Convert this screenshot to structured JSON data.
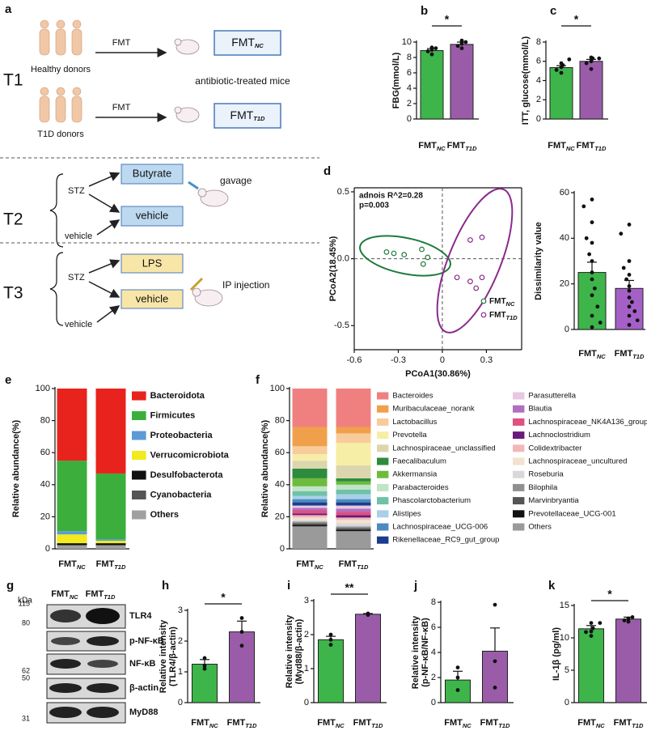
{
  "panel_a": {
    "letter": "a",
    "rows": [
      "T1",
      "T2",
      "T3"
    ],
    "t1": {
      "donors": [
        "Healthy donors",
        "T1D donors"
      ],
      "arrow": "FMT",
      "groups": [
        {
          "text": "FMT",
          "sub": "NC"
        },
        {
          "text": "FMT",
          "sub": "T1D"
        }
      ],
      "mice": "antibiotic-treated mice"
    },
    "t2": {
      "inputs": [
        "STZ",
        "vehicle"
      ],
      "boxes": [
        "Butyrate",
        "vehicle"
      ],
      "route": "gavage"
    },
    "t3": {
      "inputs": [
        "STZ",
        "vehicle"
      ],
      "boxes": [
        "LPS",
        "vehicle"
      ],
      "route": "IP injection"
    }
  },
  "panel_g": {
    "letter": "g",
    "unit": "kDa",
    "markers": [
      115,
      80,
      62,
      50,
      31
    ],
    "lanes": [
      {
        "text": "FMT",
        "sub": "NC"
      },
      {
        "text": "FMT",
        "sub": "T1D"
      }
    ],
    "proteins": [
      "TLR4",
      "p-NF-κB",
      "NF-κB",
      "β-actin",
      "MyD88"
    ]
  },
  "chart_data": [
    {
      "type": "bar",
      "letter": "b",
      "ylabel": "FBG(mmol/L)",
      "categories": [
        "FMT",
        "FMT"
      ],
      "category_subscripts": [
        "NC",
        "T1D"
      ],
      "colors": [
        "#3db54a",
        "#9a5ca8"
      ],
      "values": [
        8.9,
        9.7
      ],
      "errors": [
        0.25,
        0.3
      ],
      "points": [
        [
          8.4,
          8.8,
          9.0,
          9.2,
          9.3
        ],
        [
          9.2,
          9.5,
          9.8,
          10.0,
          10.2
        ]
      ],
      "ylim": [
        0,
        10
      ],
      "yticks": [
        0,
        2,
        4,
        6,
        8,
        10
      ],
      "significance": "*"
    },
    {
      "type": "bar",
      "letter": "c",
      "ylabel": "ITT, glucose(mmol/L)",
      "categories": [
        "FMT",
        "FMT"
      ],
      "category_subscripts": [
        "NC",
        "T1D"
      ],
      "colors": [
        "#3db54a",
        "#9a5ca8"
      ],
      "values": [
        5.35,
        6.0
      ],
      "errors": [
        0.2,
        0.2
      ],
      "points": [
        [
          4.8,
          5.1,
          5.4,
          5.6,
          5.8,
          6.2
        ],
        [
          5.2,
          5.8,
          6.0,
          6.3,
          6.4,
          6.3
        ]
      ],
      "ylim": [
        0,
        8
      ],
      "yticks": [
        0,
        2,
        4,
        6,
        8
      ],
      "significance": "*"
    },
    {
      "type": "scatter",
      "letter": "d",
      "xlabel": "PCoA1(30.86%)",
      "ylabel": "PCoA2(18.45%)",
      "annotations": [
        "adnois R^2=0.28",
        "p=0.003"
      ],
      "series": [
        {
          "name": "FMT",
          "name_sub": "NC",
          "color": "#1e7a3c",
          "x": [
            -0.38,
            -0.33,
            -0.26,
            -0.14,
            -0.13,
            -0.1
          ],
          "y": [
            0.05,
            0.04,
            0.03,
            0.07,
            -0.04,
            0.01
          ]
        },
        {
          "name": "FMT",
          "name_sub": "T1D",
          "color": "#8a2b8c",
          "x": [
            0.19,
            0.27,
            0.1,
            0.19,
            0.27,
            0.23
          ],
          "y": [
            0.14,
            0.16,
            -0.14,
            -0.17,
            -0.14,
            -0.22
          ]
        }
      ],
      "xlim": [
        -0.6,
        0.54
      ],
      "ylim": [
        -0.68,
        0.53
      ],
      "xticks": [
        -0.6,
        -0.3,
        0,
        0.3
      ],
      "yticks": [
        -0.5,
        {
          "value": 0,
          "label": "0.0"
        },
        0.5
      ]
    },
    {
      "type": "bar",
      "ylabel": "Dissimilarity value",
      "categories": [
        "FMT",
        "FMT"
      ],
      "category_subscripts": [
        "NC",
        "T1D"
      ],
      "colors": [
        "#3db54a",
        "#a560c8"
      ],
      "values": [
        25,
        18
      ],
      "errors": [
        4.5,
        3.5
      ],
      "points": [
        [
          57,
          54,
          47,
          40,
          38,
          33,
          30,
          25,
          22,
          18,
          15,
          10,
          6,
          3,
          1
        ],
        [
          46,
          42,
          30,
          27,
          24,
          22,
          19,
          17,
          14,
          12,
          10,
          8,
          6,
          4,
          2
        ]
      ],
      "ylim": [
        0,
        60
      ],
      "yticks": [
        0,
        20,
        40,
        60
      ]
    },
    {
      "type": "stacked_bar",
      "letter": "e",
      "ylabel": "Relative abundance(%)",
      "categories": [
        "FMT",
        "FMT"
      ],
      "category_subscripts": [
        "NC",
        "T1D"
      ],
      "ylim": [
        0,
        100
      ],
      "yticks": [
        0,
        20,
        40,
        60,
        80,
        100
      ],
      "series": [
        {
          "name": "Bacteroidota",
          "color": "#e8231e",
          "values": [
            45,
            53
          ]
        },
        {
          "name": "Firmicutes",
          "color": "#3cae3c",
          "values": [
            44,
            41
          ]
        },
        {
          "name": "Proteobacteria",
          "color": "#5b9bd5",
          "values": [
            2,
            1
          ]
        },
        {
          "name": "Verrucomicrobiota",
          "color": "#f2ea1c",
          "values": [
            5.5,
            1.5
          ]
        },
        {
          "name": "Desulfobacterota",
          "color": "#111111",
          "values": [
            1,
            1
          ]
        },
        {
          "name": "Cyanobacteria",
          "color": "#555555",
          "values": [
            0.5,
            0.5
          ]
        },
        {
          "name": "Others",
          "color": "#a0a0a0",
          "values": [
            2,
            2
          ]
        }
      ]
    },
    {
      "type": "stacked_bar",
      "letter": "f",
      "ylabel": "Relative abundance(%)",
      "categories": [
        "FMT",
        "FMT"
      ],
      "category_subscripts": [
        "NC",
        "T1D"
      ],
      "ylim": [
        0,
        100
      ],
      "yticks": [
        0,
        20,
        40,
        60,
        80,
        100
      ],
      "series": [
        {
          "name": "Bacteroides",
          "color": "#f08080",
          "values": [
            24,
            24
          ]
        },
        {
          "name": "Muribaculaceae_norank",
          "color": "#f0a04b",
          "values": [
            12,
            4
          ]
        },
        {
          "name": "Lactobacillus",
          "color": "#f7cc9a",
          "values": [
            5,
            6
          ]
        },
        {
          "name": "Prevotella",
          "color": "#f6eea6",
          "values": [
            4,
            14
          ]
        },
        {
          "name": "Lachnospiraceae_unclassified",
          "color": "#dcd6ae",
          "values": [
            5,
            8
          ]
        },
        {
          "name": "Faecalibaculum",
          "color": "#2e8b3e",
          "values": [
            6,
            2
          ]
        },
        {
          "name": "Akkermansia",
          "color": "#6dbb3c",
          "values": [
            5,
            2
          ]
        },
        {
          "name": "Parabacteroides",
          "color": "#bfe4c6",
          "values": [
            3,
            3
          ]
        },
        {
          "name": "Phascolarctobacterium",
          "color": "#6fc1a8",
          "values": [
            3,
            3
          ]
        },
        {
          "name": "Alistipes",
          "color": "#a8d0e8",
          "values": [
            2,
            3
          ]
        },
        {
          "name": "Lachnospiraceae_UCG-006",
          "color": "#4b8bbf",
          "values": [
            2,
            2
          ]
        },
        {
          "name": "Rikenellaceae_RC9_gut_group",
          "color": "#1c3c8c",
          "values": [
            2,
            2
          ]
        },
        {
          "name": "Parasutterella",
          "color": "#e8c8e0",
          "values": [
            1.5,
            2
          ]
        },
        {
          "name": "Blautia",
          "color": "#b070c0",
          "values": [
            1.5,
            2
          ]
        },
        {
          "name": "Lachnospiraceae_NK4A136_group",
          "color": "#e05080",
          "values": [
            2,
            2
          ]
        },
        {
          "name": "Lachnoclostridium",
          "color": "#6a1a7a",
          "values": [
            1,
            1.5
          ]
        },
        {
          "name": "Colidextribacter",
          "color": "#f2b8b8",
          "values": [
            1.5,
            1.5
          ]
        },
        {
          "name": "Lachnospiraceae_uncultured",
          "color": "#f2e2d0",
          "values": [
            1.5,
            2
          ]
        },
        {
          "name": "Roseburia",
          "color": "#d8d8d8",
          "values": [
            1,
            2
          ]
        },
        {
          "name": "Bilophila",
          "color": "#909090",
          "values": [
            1,
            1
          ]
        },
        {
          "name": "Marvinbryantia",
          "color": "#555555",
          "values": [
            1,
            1
          ]
        },
        {
          "name": "Prevotellaceae_UCG-001",
          "color": "#111111",
          "values": [
            1,
            1
          ]
        },
        {
          "name": "Others",
          "color": "#9a9a9a",
          "values": [
            14,
            11
          ]
        }
      ]
    },
    {
      "type": "bar",
      "letter": "h",
      "ylabel": [
        "Relative intensity",
        "(TLR4/β-actin)"
      ],
      "categories": [
        "FMT",
        "FMT"
      ],
      "category_subscripts": [
        "NC",
        "T1D"
      ],
      "colors": [
        "#3db54a",
        "#9a5ca8"
      ],
      "values": [
        1.25,
        2.3
      ],
      "errors": [
        0.15,
        0.35
      ],
      "points": [
        [
          1.1,
          1.2,
          1.45
        ],
        [
          1.85,
          2.3,
          2.75
        ]
      ],
      "ylim": [
        0,
        3
      ],
      "yticks": [
        0,
        1,
        2,
        3
      ],
      "significance": "*"
    },
    {
      "type": "bar",
      "letter": "i",
      "ylabel": [
        "Relative intensity",
        "(Myd88/β-actin)"
      ],
      "categories": [
        "FMT",
        "FMT"
      ],
      "category_subscripts": [
        "NC",
        "T1D"
      ],
      "colors": [
        "#3db54a",
        "#9a5ca8"
      ],
      "values": [
        1.85,
        2.6
      ],
      "errors": [
        0.1,
        0.02
      ],
      "points": [
        [
          1.7,
          1.85,
          2.0
        ],
        [
          2.58,
          2.6,
          2.62
        ]
      ],
      "ylim": [
        0,
        3
      ],
      "yticks": [
        0,
        1,
        2,
        3
      ],
      "significance": "**"
    },
    {
      "type": "bar",
      "letter": "j",
      "ylabel": [
        "Relative intensity",
        "(p-NF-κB/NF-κB)"
      ],
      "categories": [
        "FMT",
        "FMT"
      ],
      "category_subscripts": [
        "NC",
        "T1D"
      ],
      "colors": [
        "#3db54a",
        "#9a5ca8"
      ],
      "values": [
        1.8,
        4.1
      ],
      "errors": [
        0.7,
        1.85
      ],
      "points": [
        [
          1.0,
          2.0,
          2.8
        ],
        [
          1.2,
          3.3,
          7.8
        ]
      ],
      "ylim": [
        0,
        8
      ],
      "yticks": [
        0,
        2,
        4,
        6,
        8
      ]
    },
    {
      "type": "bar",
      "letter": "k",
      "ylabel": "IL-1β (pg/ml)",
      "categories": [
        "FMT",
        "FMT"
      ],
      "category_subscripts": [
        "NC",
        "T1D"
      ],
      "colors": [
        "#3db54a",
        "#9a5ca8"
      ],
      "values": [
        11.4,
        12.9
      ],
      "errors": [
        0.5,
        0.3
      ],
      "points": [
        [
          10.3,
          10.9,
          11.0,
          11.5,
          12.3,
          12.3
        ],
        [
          12.5,
          12.7,
          12.9,
          13.2,
          13.0
        ]
      ],
      "ylim": [
        0,
        15
      ],
      "yticks": [
        0,
        5,
        10,
        15
      ],
      "significance": "*"
    }
  ]
}
